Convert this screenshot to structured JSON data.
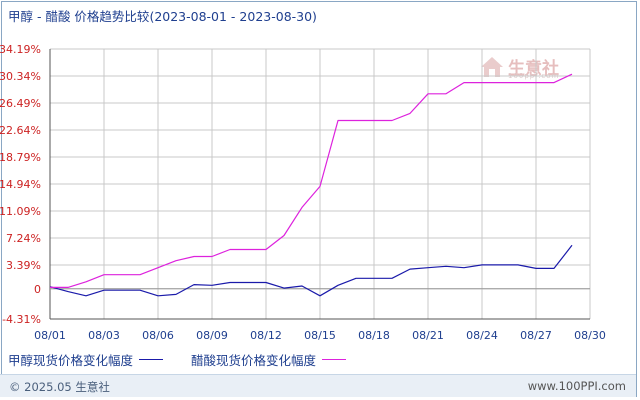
{
  "title": {
    "main": "甲醇 - 醋酸 价格趋势比较",
    "range": "(2023-08-01 - 2023-08-30)"
  },
  "watermark": {
    "text": "生意社",
    "url": "100ppi.com"
  },
  "colors": {
    "grid": "#c8c8c8",
    "axis": "#555555",
    "ytick": "#cc2222",
    "xtick": "#1f3f8f",
    "series1": "#1a1aaa",
    "series2": "#dd22dd"
  },
  "chart_data": {
    "type": "line",
    "ytick_labels": [
      "34.19%",
      "30.34%",
      "26.49%",
      "22.64%",
      "18.79%",
      "14.94%",
      "11.09%",
      "7.24%",
      "3.39%",
      "0",
      "-4.31%"
    ],
    "ytick_values": [
      34.19,
      30.34,
      26.49,
      22.64,
      18.79,
      14.94,
      11.09,
      7.24,
      3.39,
      0,
      -4.31
    ],
    "ylim": [
      -4.31,
      34.19
    ],
    "xlim": [
      1,
      31
    ],
    "x_tick_labels": [
      "08/01",
      "08/03",
      "08/06",
      "08/09",
      "08/12",
      "08/15",
      "08/18",
      "08/21",
      "08/24",
      "08/27",
      "08/30"
    ],
    "x_tick_days": [
      1,
      4,
      7,
      10,
      13,
      16,
      19,
      22,
      25,
      28,
      31
    ],
    "grid": true,
    "series": [
      {
        "name": "甲醇现货价格变化幅度",
        "color": "#1a1aaa",
        "points": [
          [
            1,
            0.3
          ],
          [
            2,
            -0.4
          ],
          [
            3,
            -1.0
          ],
          [
            4,
            -0.2
          ],
          [
            5,
            -0.2
          ],
          [
            6,
            -0.2
          ],
          [
            7,
            -1.0
          ],
          [
            8,
            -0.8
          ],
          [
            9,
            0.6
          ],
          [
            10,
            0.5
          ],
          [
            11,
            0.9
          ],
          [
            12,
            0.9
          ],
          [
            13,
            0.9
          ],
          [
            14,
            0.1
          ],
          [
            15,
            0.4
          ],
          [
            16,
            -1.0
          ],
          [
            17,
            0.5
          ],
          [
            18,
            1.5
          ],
          [
            19,
            1.5
          ],
          [
            20,
            1.5
          ],
          [
            21,
            2.8
          ],
          [
            22,
            3.0
          ],
          [
            23,
            3.2
          ],
          [
            24,
            3.0
          ],
          [
            25,
            3.4
          ],
          [
            26,
            3.4
          ],
          [
            27,
            3.4
          ],
          [
            28,
            2.9
          ],
          [
            29,
            2.9
          ],
          [
            30,
            6.2
          ]
        ]
      },
      {
        "name": "醋酸现货价格变化幅度",
        "color": "#dd22dd",
        "points": [
          [
            1,
            0.2
          ],
          [
            2,
            0.2
          ],
          [
            3,
            1.0
          ],
          [
            4,
            2.0
          ],
          [
            5,
            2.0
          ],
          [
            6,
            2.0
          ],
          [
            7,
            3.0
          ],
          [
            8,
            4.0
          ],
          [
            9,
            4.6
          ],
          [
            10,
            4.6
          ],
          [
            11,
            5.6
          ],
          [
            12,
            5.6
          ],
          [
            13,
            5.6
          ],
          [
            14,
            7.6
          ],
          [
            15,
            11.6
          ],
          [
            16,
            14.6
          ],
          [
            17,
            24.0
          ],
          [
            18,
            24.0
          ],
          [
            19,
            24.0
          ],
          [
            20,
            24.0
          ],
          [
            21,
            25.0
          ],
          [
            22,
            27.8
          ],
          [
            23,
            27.8
          ],
          [
            24,
            29.4
          ],
          [
            25,
            29.4
          ],
          [
            26,
            29.4
          ],
          [
            27,
            29.4
          ],
          [
            28,
            29.4
          ],
          [
            29,
            29.4
          ],
          [
            30,
            30.6
          ]
        ]
      }
    ]
  },
  "legend": {
    "series1_label": "甲醇现货价格变化幅度",
    "series2_label": "醋酸现货价格变化幅度"
  },
  "footer": {
    "copyright": "© 2025.05 生意社",
    "site": "www.100PPI.com"
  }
}
